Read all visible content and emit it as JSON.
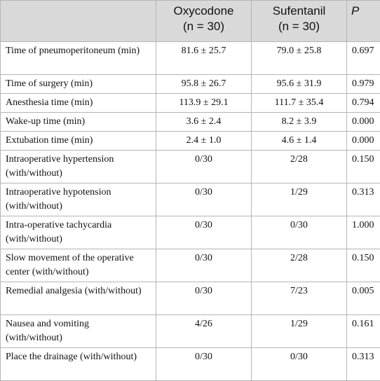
{
  "table": {
    "header": [
      [
        "Oxycodone",
        "(n = 30)"
      ],
      [
        "Sufentanil",
        "(n = 30)"
      ],
      [
        "P"
      ]
    ],
    "rows": [
      [
        "Time of pneumoperitoneum (min)",
        "81.6 ± 25.7",
        "79.0 ± 25.8",
        "0.697"
      ],
      [
        "Time of surgery (min)",
        "95.8 ± 26.7",
        "95.6 ± 31.9",
        "0.979"
      ],
      [
        "Anesthesia time (min)",
        "113.9 ± 29.1",
        "111.7 ± 35.4",
        "0.794"
      ],
      [
        "Wake-up time (min)",
        "3.6 ± 2.4",
        "8.2 ± 3.9",
        "0.000"
      ],
      [
        "Extubation time (min)",
        "2.4 ± 1.0",
        "4.6 ± 1.4",
        "0.000"
      ],
      [
        "Intraoperative hypertension (with/without)",
        "0/30",
        "2/28",
        "0.150"
      ],
      [
        "Intraoperative hypotension (with/without)",
        "0/30",
        "1/29",
        "0.313"
      ],
      [
        "Intra-operative tachycardia (with/without)",
        "0/30",
        "0/30",
        "1.000"
      ],
      [
        "Slow movement of the operative center (with/without)",
        "0/30",
        "2/28",
        "0.150"
      ],
      [
        "Remedial analgesia (with/without)",
        "0/30",
        "7/23",
        "0.005"
      ],
      [
        "Nausea and vomiting (with/without)",
        "4/26",
        "1/29",
        "0.161"
      ],
      [
        "Place the drainage (with/without)",
        "0/30",
        "0/30",
        "0.313"
      ]
    ]
  }
}
